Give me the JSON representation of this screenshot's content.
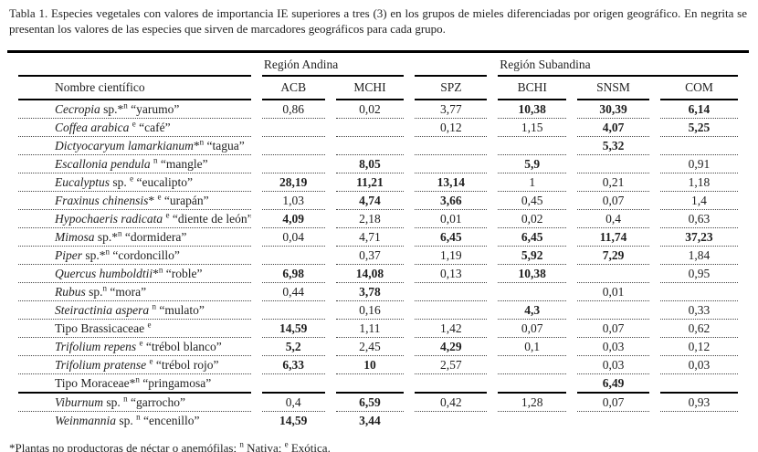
{
  "caption": "Tabla 1. Especies vegetales con valores de importancia IE superiores a tres (3) en los grupos de mieles diferenciadas por origen geográfico. En negrita se presentan los valores de las especies que sirven de marcadores geográficos para cada grupo.",
  "footnote_parts": [
    {
      "t": "*Plantas no productoras de néctar o anemófilas; "
    },
    {
      "t": "n",
      "sup": 1
    },
    {
      "t": " Nativa; "
    },
    {
      "t": "e",
      "sup": 1
    },
    {
      "t": " Exótica."
    }
  ],
  "colors": {
    "text": "#1f1f1f",
    "rule": "#000000",
    "dotted_rule": "#444444"
  },
  "table": {
    "groups": {
      "andina": "Región Andina",
      "subandina": "Región Subandina"
    },
    "columns": [
      "Nombre científico",
      "ACB",
      "MCHI",
      "SPZ",
      "BCHI",
      "SNSM",
      "COM"
    ],
    "rows": [
      {
        "name": [
          {
            "t": "Cecropia",
            "i": 1
          },
          {
            "t": " sp.*"
          },
          {
            "t": "n",
            "sup": 1
          },
          {
            "t": " “yarumo”"
          }
        ],
        "values": [
          "0,86",
          "0,02",
          "3,77",
          "10,38",
          "30,39",
          "6,14"
        ],
        "bold": [
          0,
          0,
          0,
          1,
          1,
          1
        ]
      },
      {
        "name": [
          {
            "t": "Coffea arabica",
            "i": 1
          },
          {
            "t": " "
          },
          {
            "t": "e",
            "sup": 1
          },
          {
            "t": " “café”"
          }
        ],
        "values": [
          "",
          "",
          "0,12",
          "1,15",
          "4,07",
          "5,25"
        ],
        "bold": [
          0,
          0,
          0,
          0,
          1,
          1
        ]
      },
      {
        "name": [
          {
            "t": "Dictyocaryum lamarkianum",
            "i": 1
          },
          {
            "t": "*"
          },
          {
            "t": "n",
            "sup": 1
          },
          {
            "t": " “tagua”"
          }
        ],
        "values": [
          "",
          "",
          "",
          "",
          "5,32",
          ""
        ],
        "bold": [
          0,
          0,
          0,
          0,
          1,
          0
        ]
      },
      {
        "name": [
          {
            "t": "Escallonia pendula",
            "i": 1
          },
          {
            "t": " "
          },
          {
            "t": "n",
            "sup": 1
          },
          {
            "t": " “mangle”"
          }
        ],
        "values": [
          "",
          "8,05",
          "",
          "5,9",
          "",
          "0,91"
        ],
        "bold": [
          0,
          1,
          0,
          1,
          0,
          0
        ]
      },
      {
        "name": [
          {
            "t": "Eucalyptus",
            "i": 1
          },
          {
            "t": " sp. "
          },
          {
            "t": "e",
            "sup": 1
          },
          {
            "t": " “eucalipto”"
          }
        ],
        "values": [
          "28,19",
          "11,21",
          "13,14",
          "1",
          "0,21",
          "1,18"
        ],
        "bold": [
          1,
          1,
          1,
          0,
          0,
          0
        ]
      },
      {
        "name": [
          {
            "t": "Fraxinus chinensis",
            "i": 1
          },
          {
            "t": "* "
          },
          {
            "t": "e",
            "sup": 1
          },
          {
            "t": " “urapán”"
          }
        ],
        "values": [
          "1,03",
          "4,74",
          "3,66",
          "0,45",
          "0,07",
          "1,4"
        ],
        "bold": [
          0,
          1,
          1,
          0,
          0,
          0
        ]
      },
      {
        "name": [
          {
            "t": "Hypochaeris radicata",
            "i": 1
          },
          {
            "t": " "
          },
          {
            "t": "e",
            "sup": 1
          },
          {
            "t": " “diente de león”"
          }
        ],
        "values": [
          "4,09",
          "2,18",
          "0,01",
          "0,02",
          "0,4",
          "0,63"
        ],
        "bold": [
          1,
          0,
          0,
          0,
          0,
          0
        ]
      },
      {
        "name": [
          {
            "t": "Mimosa",
            "i": 1
          },
          {
            "t": " sp.*"
          },
          {
            "t": "n",
            "sup": 1
          },
          {
            "t": " “dormidera”"
          }
        ],
        "values": [
          "0,04",
          "4,71",
          "6,45",
          "6,45",
          "11,74",
          "37,23"
        ],
        "bold": [
          0,
          0,
          1,
          1,
          1,
          1
        ]
      },
      {
        "name": [
          {
            "t": "Piper",
            "i": 1
          },
          {
            "t": " sp.*"
          },
          {
            "t": "n",
            "sup": 1
          },
          {
            "t": " “cordoncillo”"
          }
        ],
        "values": [
          "",
          "0,37",
          "1,19",
          "5,92",
          "7,29",
          "1,84"
        ],
        "bold": [
          0,
          0,
          0,
          1,
          1,
          0
        ]
      },
      {
        "name": [
          {
            "t": "Quercus humboldtii",
            "i": 1
          },
          {
            "t": "*"
          },
          {
            "t": "n",
            "sup": 1
          },
          {
            "t": " “roble”"
          }
        ],
        "values": [
          "6,98",
          "14,08",
          "0,13",
          "10,38",
          "",
          "0,95"
        ],
        "bold": [
          1,
          1,
          0,
          1,
          0,
          0
        ]
      },
      {
        "name": [
          {
            "t": "Rubus",
            "i": 1
          },
          {
            "t": " sp."
          },
          {
            "t": "n",
            "sup": 1
          },
          {
            "t": " “mora”"
          }
        ],
        "values": [
          "0,44",
          "3,78",
          "",
          "",
          "0,01",
          ""
        ],
        "bold": [
          0,
          1,
          0,
          0,
          0,
          0
        ]
      },
      {
        "name": [
          {
            "t": "Steiractinia aspera",
            "i": 1
          },
          {
            "t": " "
          },
          {
            "t": "n",
            "sup": 1
          },
          {
            "t": " “mulato”"
          }
        ],
        "values": [
          "",
          "0,16",
          "",
          "4,3",
          "",
          "0,33"
        ],
        "bold": [
          0,
          0,
          0,
          1,
          0,
          0
        ]
      },
      {
        "name": [
          {
            "t": "Tipo Brassicaceae "
          },
          {
            "t": "e",
            "sup": 1
          }
        ],
        "values": [
          "14,59",
          "1,11",
          "1,42",
          "0,07",
          "0,07",
          "0,62"
        ],
        "bold": [
          1,
          0,
          0,
          0,
          0,
          0
        ]
      },
      {
        "name": [
          {
            "t": "Trifolium repens",
            "i": 1
          },
          {
            "t": " "
          },
          {
            "t": "e",
            "sup": 1
          },
          {
            "t": " “trébol blanco”"
          }
        ],
        "values": [
          "5,2",
          "2,45",
          "4,29",
          "0,1",
          "0,03",
          "0,12"
        ],
        "bold": [
          1,
          0,
          1,
          0,
          0,
          0
        ]
      },
      {
        "name": [
          {
            "t": "Trifolium pratense",
            "i": 1
          },
          {
            "t": " "
          },
          {
            "t": "e",
            "sup": 1
          },
          {
            "t": " “trébol rojo”"
          }
        ],
        "values": [
          "6,33",
          "10",
          "2,57",
          "",
          "0,03",
          "0,03"
        ],
        "bold": [
          1,
          1,
          0,
          0,
          0,
          0
        ]
      },
      {
        "name": [
          {
            "t": "Tipo Moraceae*"
          },
          {
            "t": "n",
            "sup": 1
          },
          {
            "t": " “pringamosa”"
          }
        ],
        "values": [
          "",
          "",
          "",
          "",
          "6,49",
          ""
        ],
        "bold": [
          0,
          0,
          0,
          0,
          1,
          0
        ],
        "sep": true
      },
      {
        "name": [
          {
            "t": "Viburnum",
            "i": 1
          },
          {
            "t": " sp. "
          },
          {
            "t": "n",
            "sup": 1
          },
          {
            "t": " “garrocho”"
          }
        ],
        "values": [
          "0,4",
          "6,59",
          "0,42",
          "1,28",
          "0,07",
          "0,93"
        ],
        "bold": [
          0,
          1,
          0,
          0,
          0,
          0
        ]
      },
      {
        "name": [
          {
            "t": "Weinmannia",
            "i": 1
          },
          {
            "t": " sp. "
          },
          {
            "t": "n",
            "sup": 1
          },
          {
            "t": " “encenillo”"
          }
        ],
        "values": [
          "14,59",
          "3,44",
          "",
          "",
          "",
          ""
        ],
        "bold": [
          1,
          1,
          0,
          0,
          0,
          0
        ]
      }
    ]
  }
}
